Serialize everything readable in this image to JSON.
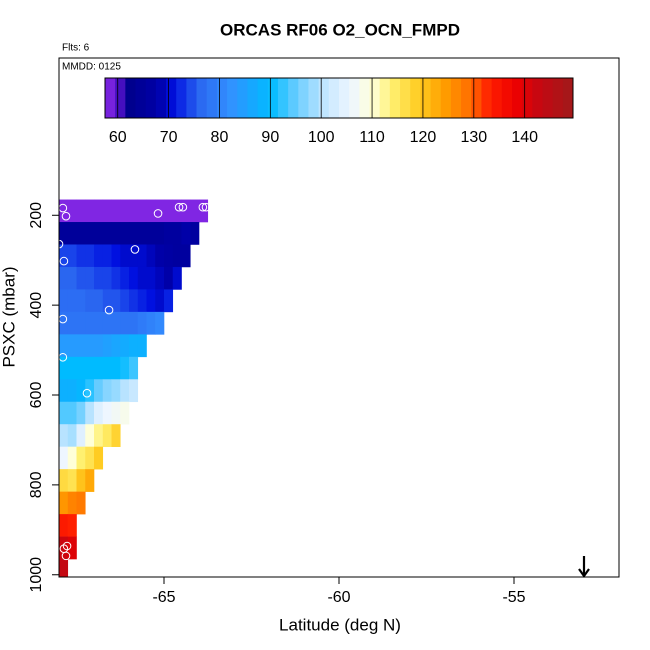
{
  "chart_data": {
    "type": "heatmap",
    "title": "ORCAS RF06 O2_OCN_FMPD",
    "flights_label": "Flts: 6",
    "date_label": "MMDD: 0125",
    "xlabel": "Latitude (deg N)",
    "ylabel": "PSXC (mbar)",
    "xlim": [
      -68,
      -52
    ],
    "xticks": [
      -65,
      -60,
      -55
    ],
    "ylim": [
      1005,
      -150
    ],
    "yticks": [
      200,
      400,
      600,
      800,
      1000
    ],
    "xbins": [
      -68,
      -67.75,
      -67.5,
      -67.25,
      -67,
      -66.75,
      -66.5,
      -66.25,
      -66,
      -65.75,
      -65.5,
      -65.25,
      -65,
      -64.75,
      -64.5,
      -64.25,
      -64,
      -63.75
    ],
    "ybins": [
      165,
      215,
      265,
      315,
      365,
      415,
      465,
      515,
      565,
      615,
      665,
      715,
      765,
      815,
      865,
      915,
      965,
      1015
    ],
    "values": [
      [
        58,
        58,
        58,
        58,
        58,
        58,
        58,
        58,
        58,
        58,
        58,
        58,
        58,
        58,
        58,
        58,
        58
      ],
      [
        65,
        65,
        65,
        65,
        65,
        65,
        65,
        65,
        65,
        65,
        65,
        65,
        66,
        66,
        68,
        66,
        null
      ],
      [
        74,
        74,
        73,
        73,
        72,
        72,
        71,
        70,
        70,
        70,
        69,
        68,
        67,
        66,
        66,
        null,
        null
      ],
      [
        76,
        76,
        75,
        75,
        74,
        74,
        73,
        72,
        71,
        70,
        70,
        69,
        68,
        70,
        null,
        null,
        null
      ],
      [
        77,
        77,
        77,
        76,
        76,
        75,
        75,
        74,
        73,
        72,
        71,
        70,
        72,
        null,
        null,
        null,
        null
      ],
      [
        78,
        78,
        78,
        78,
        78,
        78,
        78,
        78,
        78,
        79,
        80,
        81,
        null,
        null,
        null,
        null,
        null
      ],
      [
        84,
        84,
        84,
        84,
        84,
        85,
        86,
        87,
        88,
        88,
        null,
        null,
        null,
        null,
        null,
        null,
        null
      ],
      [
        90,
        90,
        90,
        90,
        90,
        90,
        90,
        91,
        93,
        null,
        null,
        null,
        null,
        null,
        null,
        null,
        null
      ],
      [
        88,
        88,
        89,
        92,
        95,
        97,
        98,
        100,
        101,
        null,
        null,
        null,
        null,
        null,
        null,
        null,
        null
      ],
      [
        94,
        94,
        96,
        100,
        104,
        106,
        107,
        108,
        null,
        null,
        null,
        null,
        null,
        null,
        null,
        null,
        null
      ],
      [
        100,
        99,
        104,
        110,
        113,
        115,
        118,
        null,
        null,
        null,
        null,
        null,
        null,
        null,
        null,
        null,
        null
      ],
      [
        106,
        110,
        114,
        116,
        119,
        null,
        null,
        null,
        null,
        null,
        null,
        null,
        null,
        null,
        null,
        null,
        null
      ],
      [
        117,
        116,
        120,
        123,
        null,
        null,
        null,
        null,
        null,
        null,
        null,
        null,
        null,
        null,
        null,
        null,
        null
      ],
      [
        125,
        127,
        128,
        null,
        null,
        null,
        null,
        null,
        null,
        null,
        null,
        null,
        null,
        null,
        null,
        null,
        null
      ],
      [
        134,
        133,
        null,
        null,
        null,
        null,
        null,
        null,
        null,
        null,
        null,
        null,
        null,
        null,
        null,
        null,
        null
      ],
      [
        142,
        140,
        null,
        null,
        null,
        null,
        null,
        null,
        null,
        null,
        null,
        null,
        null,
        null,
        null,
        null,
        null
      ],
      [
        143,
        null,
        null,
        null,
        null,
        null,
        null,
        null,
        null,
        null,
        null,
        null,
        null,
        null,
        null,
        null,
        null
      ]
    ],
    "points": {
      "x": [
        -67.89,
        -67.8,
        -65.17,
        -64.57,
        -64.46,
        -63.89,
        -63.8,
        -68,
        -65.83,
        -67.86,
        -67.89,
        -66.57,
        -67.89,
        -67.2,
        -67.77,
        -67.86,
        -67.8
      ],
      "y": [
        184,
        202,
        196,
        182,
        182,
        182,
        182,
        264,
        276,
        302,
        431,
        411,
        516,
        596,
        936,
        942,
        958
      ],
      "color": "#ffffff"
    },
    "arrow": {
      "x": -53
    },
    "clim": [
      57.5,
      149.5
    ],
    "cticks": [
      60,
      70,
      80,
      90,
      100,
      110,
      120,
      130,
      140
    ],
    "colormap": [
      {
        "value": 57.5,
        "color": "#8a2be8"
      },
      {
        "value": 60,
        "color": "#5a14d0"
      },
      {
        "value": 62,
        "color": "#00008c"
      },
      {
        "value": 68,
        "color": "#0000a8"
      },
      {
        "value": 71,
        "color": "#0010e0"
      },
      {
        "value": 76,
        "color": "#2a66f0"
      },
      {
        "value": 82,
        "color": "#3390ff"
      },
      {
        "value": 90,
        "color": "#00bbff"
      },
      {
        "value": 95,
        "color": "#66ccff"
      },
      {
        "value": 101,
        "color": "#c8e8ff"
      },
      {
        "value": 106,
        "color": "#eef6ff"
      },
      {
        "value": 110,
        "color": "#ffffd8"
      },
      {
        "value": 114,
        "color": "#fff070"
      },
      {
        "value": 119,
        "color": "#ffcc22"
      },
      {
        "value": 124,
        "color": "#ffa000"
      },
      {
        "value": 129,
        "color": "#ff7000"
      },
      {
        "value": 133,
        "color": "#ff2000"
      },
      {
        "value": 138,
        "color": "#ee0000"
      },
      {
        "value": 143,
        "color": "#c40812"
      },
      {
        "value": 149.5,
        "color": "#a01a1a"
      }
    ]
  }
}
